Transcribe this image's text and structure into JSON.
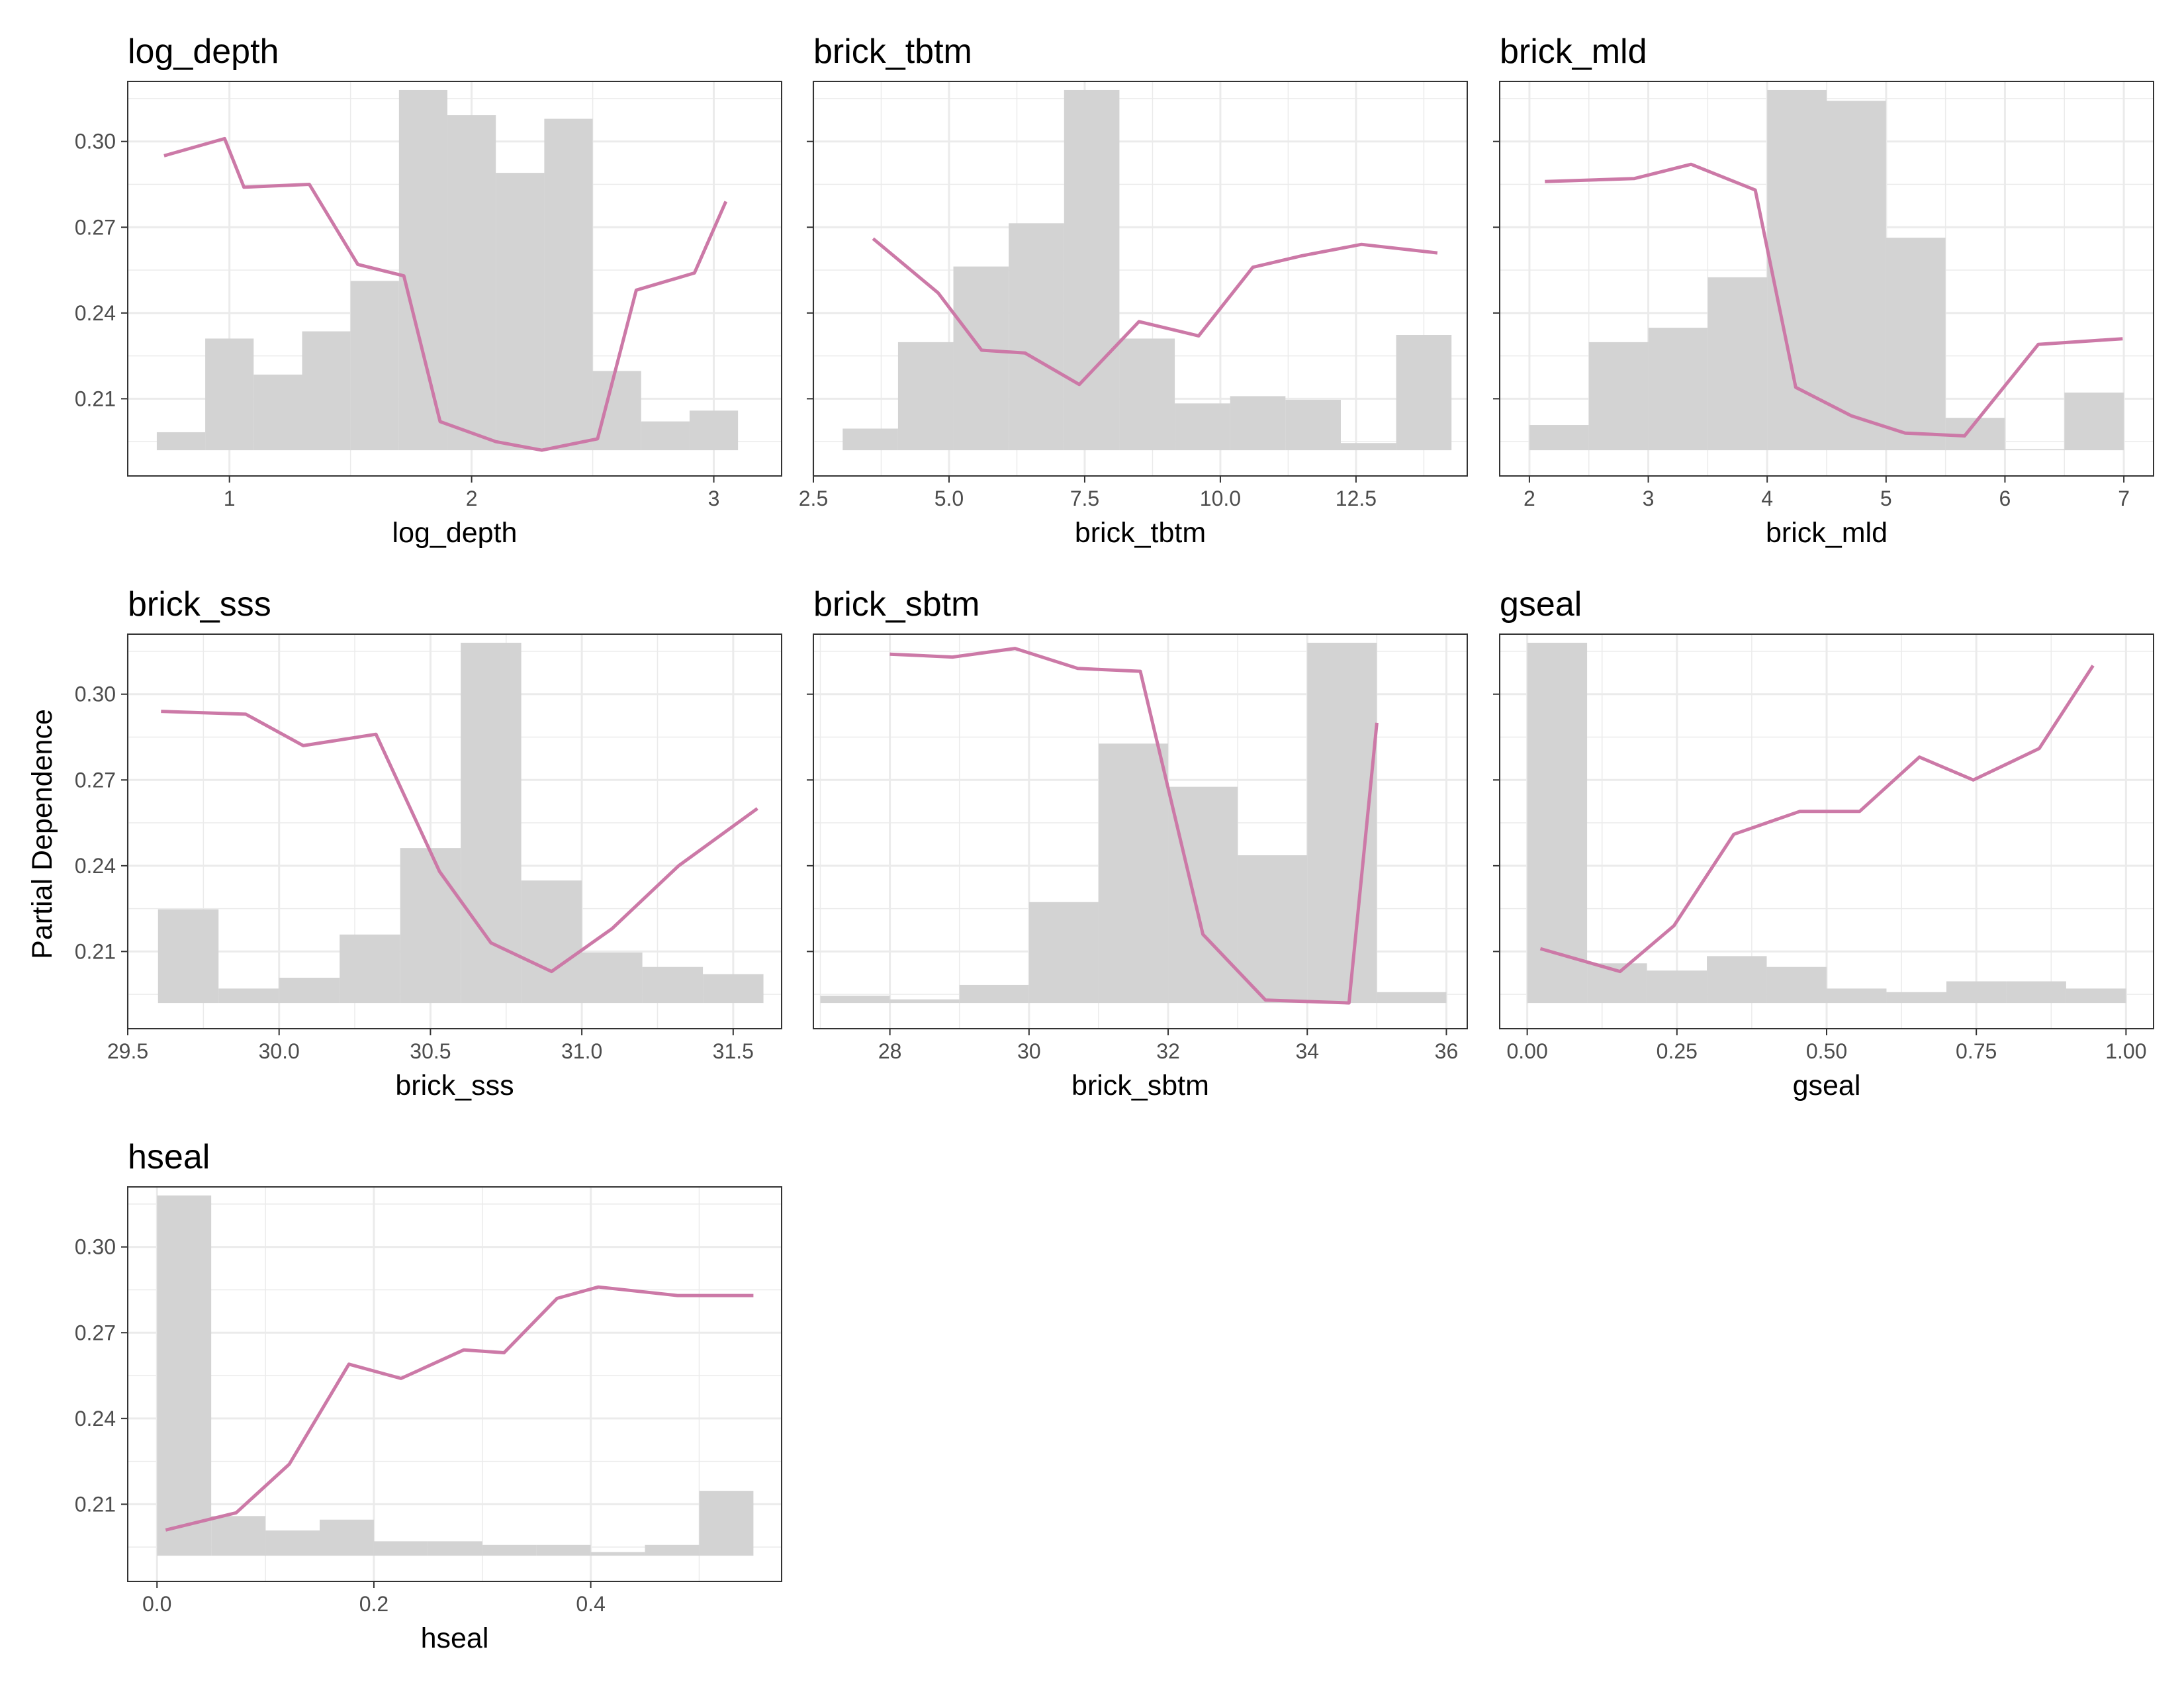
{
  "figure": {
    "ylabel": "Partial Dependence",
    "colors": {
      "line": "#cc79a7",
      "hist": "#d3d3d3",
      "grid": "#ebebeb",
      "border": "#333333"
    }
  },
  "chart_data": [
    {
      "type": "line",
      "title": "log_depth",
      "xlabel": "log_depth",
      "xlim": [
        0.58,
        3.28
      ],
      "xticks": [
        1,
        2,
        3
      ],
      "xtick_labels": [
        "1",
        "2",
        "3"
      ],
      "ylim": [
        0.183,
        0.321
      ],
      "yticks": [
        0.21,
        0.24,
        0.27,
        0.3
      ],
      "ytick_labels": [
        "0.21",
        "0.24",
        "0.27",
        "0.30"
      ],
      "hist_range": [
        0.192,
        0.318
      ],
      "hist": {
        "edges": [
          0.7,
          0.9,
          1.1,
          1.3,
          1.5,
          1.7,
          1.9,
          2.1,
          2.3,
          2.5,
          2.7,
          2.9,
          3.1
        ],
        "freq": [
          0.05,
          0.31,
          0.21,
          0.33,
          0.47,
          1.0,
          0.93,
          0.77,
          0.92,
          0.22,
          0.08,
          0.11,
          0.03
        ]
      },
      "series": [
        {
          "x": [
            0.73,
            0.98,
            1.06,
            1.33,
            1.53,
            1.72,
            1.87,
            2.1,
            2.29,
            2.52,
            2.68,
            2.92,
            3.05
          ],
          "y": [
            0.295,
            0.301,
            0.284,
            0.285,
            0.257,
            0.253,
            0.202,
            0.195,
            0.192,
            0.196,
            0.248,
            0.254,
            0.279
          ]
        }
      ]
    },
    {
      "type": "line",
      "title": "brick_tbtm",
      "xlabel": "brick_tbtm",
      "xlim": [
        2.5,
        14.55
      ],
      "xticks": [
        2.5,
        5.0,
        7.5,
        10.0,
        12.5
      ],
      "xtick_labels": [
        "2.5",
        "5.0",
        "7.5",
        "10.0",
        "12.5"
      ],
      "ylim": [
        0.183,
        0.321
      ],
      "yticks": [
        0.21,
        0.24,
        0.27,
        0.3
      ],
      "ytick_labels": [
        "",
        "",
        "",
        ""
      ],
      "hist_range": [
        0.192,
        0.318
      ],
      "hist": {
        "edges": [
          3.04,
          4.06,
          5.08,
          6.1,
          7.12,
          8.14,
          9.16,
          10.18,
          11.2,
          12.22,
          13.24,
          14.26
        ],
        "freq": [
          0.06,
          0.3,
          0.51,
          0.63,
          1.0,
          0.31,
          0.13,
          0.15,
          0.14,
          0.02,
          0.32
        ]
      },
      "series": [
        {
          "x": [
            3.6,
            4.8,
            5.6,
            6.4,
            7.4,
            8.5,
            9.6,
            10.6,
            11.5,
            12.6,
            14.0
          ],
          "y": [
            0.266,
            0.247,
            0.227,
            0.226,
            0.215,
            0.237,
            0.232,
            0.256,
            0.26,
            0.264,
            0.261
          ]
        }
      ]
    },
    {
      "type": "line",
      "title": "brick_mld",
      "xlabel": "brick_mld",
      "xlim": [
        1.75,
        7.25
      ],
      "xticks": [
        2,
        3,
        4,
        5,
        6,
        7
      ],
      "xtick_labels": [
        "2",
        "3",
        "4",
        "5",
        "6",
        "7"
      ],
      "ylim": [
        0.183,
        0.321
      ],
      "yticks": [
        0.21,
        0.24,
        0.27,
        0.3
      ],
      "ytick_labels": [
        "",
        "",
        "",
        ""
      ],
      "hist_range": [
        0.192,
        0.318
      ],
      "hist": {
        "edges": [
          2.0,
          2.5,
          3.0,
          3.5,
          4.0,
          4.5,
          5.0,
          5.5,
          6.0,
          6.5,
          7.0
        ],
        "freq": [
          0.07,
          0.3,
          0.34,
          0.48,
          1.0,
          0.97,
          0.59,
          0.09,
          0.0,
          0.16
        ]
      },
      "series": [
        {
          "x": [
            2.13,
            2.88,
            3.36,
            3.9,
            4.24,
            4.71,
            5.16,
            5.66,
            6.28,
            6.99
          ],
          "y": [
            0.286,
            0.287,
            0.292,
            0.283,
            0.214,
            0.204,
            0.198,
            0.197,
            0.229,
            0.231
          ]
        }
      ]
    },
    {
      "type": "line",
      "title": "brick_sss",
      "xlabel": "brick_sss",
      "xlim": [
        29.5,
        31.66
      ],
      "xticks": [
        29.5,
        30.0,
        30.5,
        31.0,
        31.5
      ],
      "xtick_labels": [
        "29.5",
        "30.0",
        "30.5",
        "31.0",
        "31.5"
      ],
      "ylim": [
        0.183,
        0.321
      ],
      "yticks": [
        0.21,
        0.24,
        0.27,
        0.3
      ],
      "ytick_labels": [
        "0.21",
        "0.24",
        "0.27",
        "0.30"
      ],
      "hist_range": [
        0.192,
        0.318
      ],
      "hist": {
        "edges": [
          29.6,
          29.8,
          30.0,
          30.2,
          30.4,
          30.6,
          30.8,
          31.0,
          31.2,
          31.4,
          31.6
        ],
        "freq": [
          0.26,
          0.04,
          0.07,
          0.19,
          0.43,
          1.0,
          0.34,
          0.14,
          0.1,
          0.08
        ]
      },
      "series": [
        {
          "x": [
            29.61,
            29.89,
            30.08,
            30.32,
            30.53,
            30.7,
            30.9,
            31.1,
            31.32,
            31.58
          ],
          "y": [
            0.294,
            0.293,
            0.282,
            0.286,
            0.238,
            0.213,
            0.203,
            0.218,
            0.24,
            0.26
          ]
        }
      ]
    },
    {
      "type": "line",
      "title": "brick_sbtm",
      "xlabel": "brick_sbtm",
      "xlim": [
        26.9,
        36.3
      ],
      "xticks": [
        28,
        30,
        32,
        34,
        36
      ],
      "xtick_labels": [
        "28",
        "30",
        "32",
        "34",
        "36"
      ],
      "ylim": [
        0.183,
        0.321
      ],
      "yticks": [
        0.21,
        0.24,
        0.27,
        0.3
      ],
      "ytick_labels": [
        "",
        "",
        "",
        ""
      ],
      "hist_range": [
        0.192,
        0.318
      ],
      "hist": {
        "edges": [
          27.0,
          28.0,
          29.0,
          30.0,
          31.0,
          32.0,
          33.0,
          34.0,
          35.0,
          36.0
        ],
        "freq": [
          0.02,
          0.01,
          0.05,
          0.28,
          0.72,
          0.6,
          0.41,
          1.0,
          0.03
        ]
      },
      "series": [
        {
          "x": [
            28.0,
            28.9,
            29.8,
            30.7,
            31.6,
            32.5,
            33.4,
            34.6,
            35.0
          ],
          "y": [
            0.314,
            0.313,
            0.316,
            0.309,
            0.308,
            0.216,
            0.193,
            0.192,
            0.29
          ]
        }
      ]
    },
    {
      "type": "line",
      "title": "gseal",
      "xlabel": "gseal",
      "xlim": [
        -0.046,
        1.046
      ],
      "xticks": [
        0.0,
        0.25,
        0.5,
        0.75,
        1.0
      ],
      "xtick_labels": [
        "0.00",
        "0.25",
        "0.50",
        "0.75",
        "1.00"
      ],
      "ylim": [
        0.183,
        0.321
      ],
      "yticks": [
        0.21,
        0.24,
        0.27,
        0.3
      ],
      "ytick_labels": [
        "",
        "",
        "",
        ""
      ],
      "hist_range": [
        0.192,
        0.318
      ],
      "hist": {
        "edges": [
          0.0,
          0.1,
          0.2,
          0.3,
          0.4,
          0.5,
          0.6,
          0.7,
          0.8,
          0.9,
          1.0
        ],
        "freq": [
          1.0,
          0.11,
          0.09,
          0.13,
          0.1,
          0.04,
          0.03,
          0.06,
          0.06,
          0.04
        ]
      },
      "series": [
        {
          "x": [
            0.022,
            0.155,
            0.245,
            0.345,
            0.455,
            0.555,
            0.655,
            0.745,
            0.855,
            0.945
          ],
          "y": [
            0.211,
            0.203,
            0.219,
            0.251,
            0.259,
            0.259,
            0.278,
            0.27,
            0.281,
            0.31
          ]
        }
      ]
    },
    {
      "type": "line",
      "title": "hseal",
      "xlabel": "hseal",
      "xlim": [
        -0.027,
        0.576
      ],
      "xticks": [
        0.0,
        0.2,
        0.4
      ],
      "xtick_labels": [
        "0.0",
        "0.2",
        "0.4"
      ],
      "ylim": [
        0.183,
        0.321
      ],
      "yticks": [
        0.21,
        0.24,
        0.27,
        0.3
      ],
      "ytick_labels": [
        "0.21",
        "0.24",
        "0.27",
        "0.30"
      ],
      "hist_range": [
        0.192,
        0.318
      ],
      "hist": {
        "edges": [
          0.0,
          0.05,
          0.1,
          0.15,
          0.2,
          0.25,
          0.3,
          0.35,
          0.4,
          0.45,
          0.5,
          0.55
        ],
        "freq": [
          1.0,
          0.11,
          0.07,
          0.1,
          0.04,
          0.04,
          0.03,
          0.03,
          0.01,
          0.03,
          0.18
        ]
      },
      "series": [
        {
          "x": [
            0.008,
            0.073,
            0.122,
            0.177,
            0.225,
            0.283,
            0.32,
            0.369,
            0.407,
            0.48,
            0.55
          ],
          "y": [
            0.201,
            0.207,
            0.224,
            0.259,
            0.254,
            0.264,
            0.263,
            0.282,
            0.286,
            0.283,
            0.283
          ]
        }
      ]
    }
  ]
}
